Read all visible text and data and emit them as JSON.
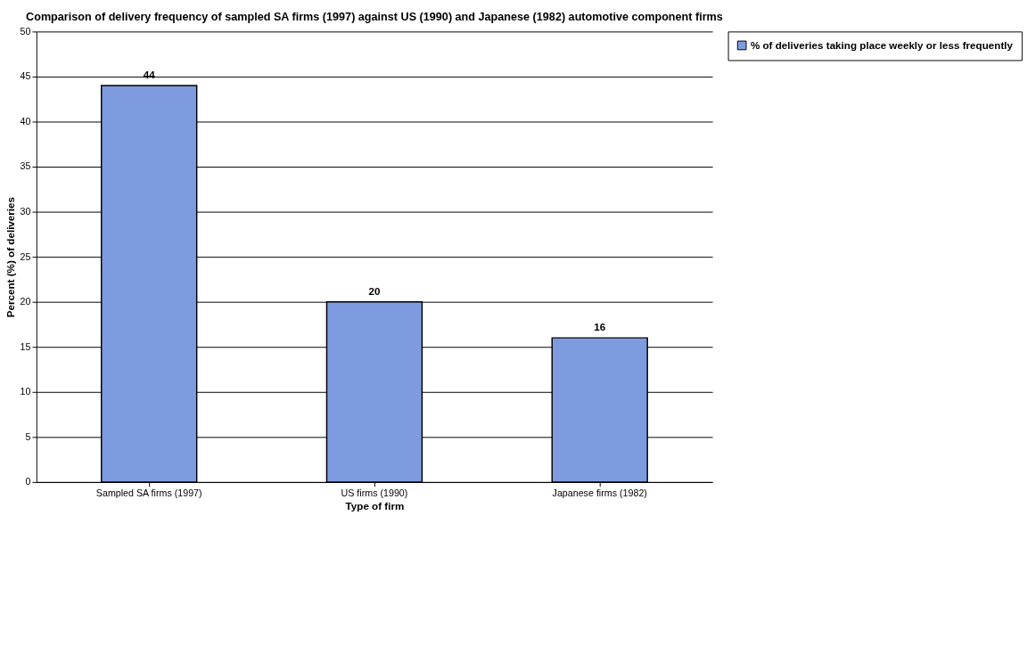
{
  "chart_data": {
    "type": "bar",
    "title": "Comparison of delivery frequency of sampled SA firms (1997) against US (1990) and Japanese (1982) automotive component firms",
    "xlabel": "Type of firm",
    "ylabel": "Percent (%) of deliveries",
    "categories": [
      "Sampled SA firms (1997)",
      "US firms (1990)",
      "Japanese firms (1982)"
    ],
    "series": [
      {
        "name": "% of deliveries taking place weekly or less frequently",
        "color": "#7f9be0",
        "values": [
          44,
          20,
          16
        ]
      }
    ],
    "ylim": [
      0,
      50
    ],
    "yticks": [
      0,
      5,
      10,
      15,
      20,
      25,
      30,
      35,
      40,
      45,
      50
    ],
    "grid": "y",
    "legend": "right",
    "data_labels": true
  }
}
